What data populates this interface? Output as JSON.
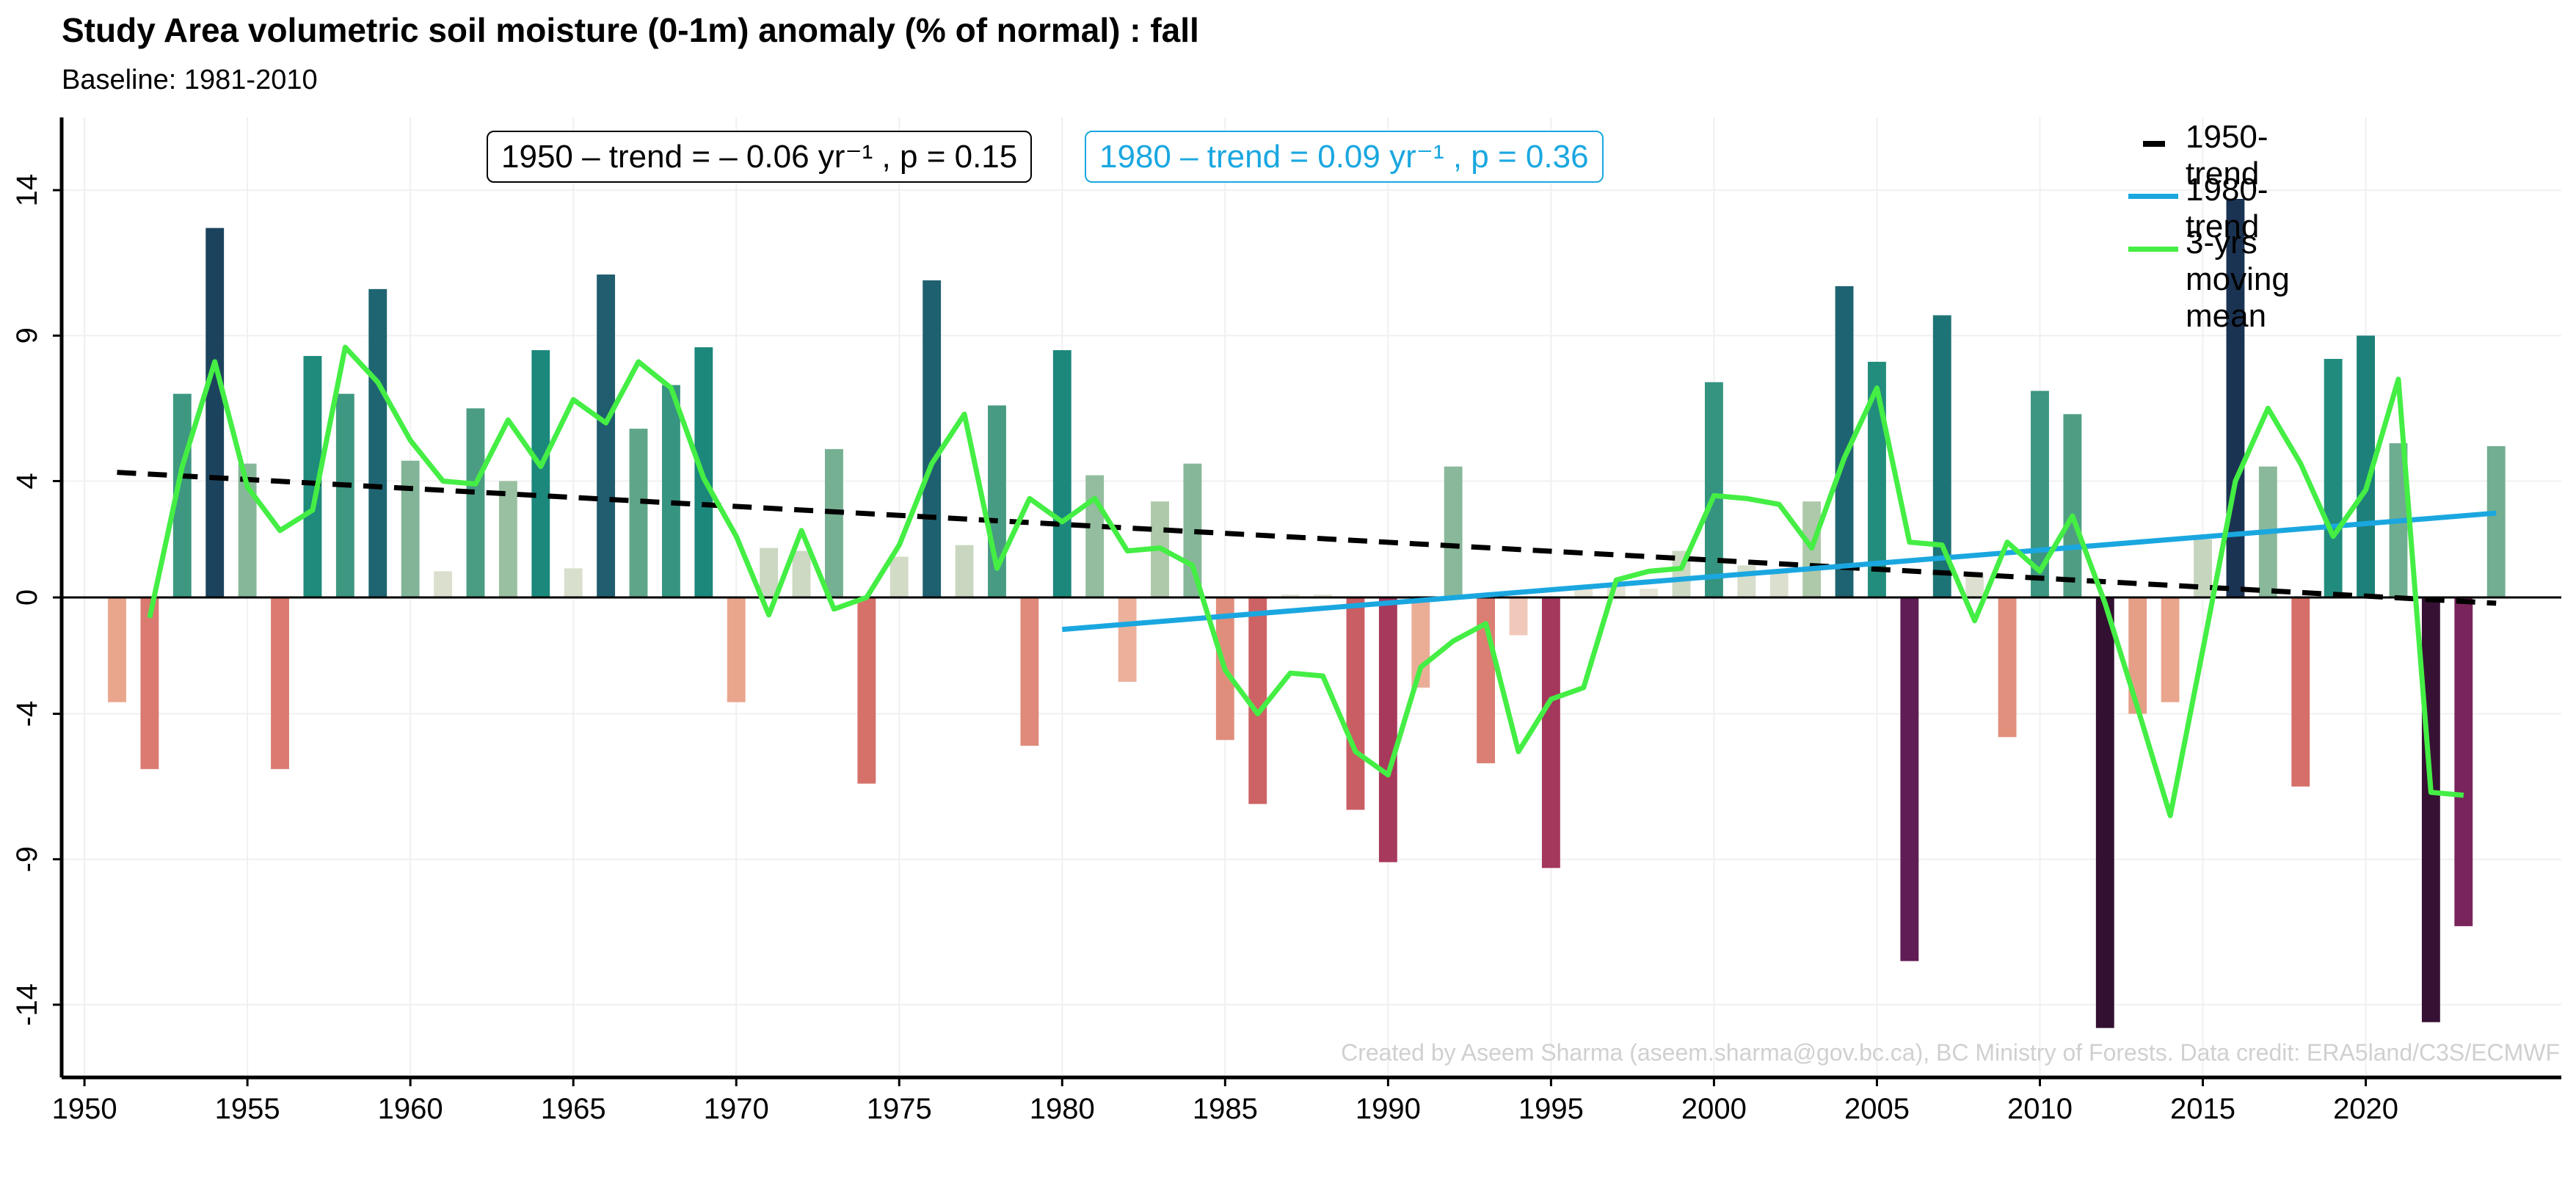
{
  "title": "Study Area volumetric soil moisture (0-1m) anomaly (% of normal) : fall",
  "subtitle": "Baseline: 1981-2010",
  "annotation_1950": "1950 –  trend = – 0.06 yr⁻¹ , p = 0.15",
  "annotation_1980": "1980 –  trend = 0.09 yr⁻¹ , p = 0.36",
  "legend": [
    {
      "label": "1950-trend",
      "color": "#000000",
      "style": "dashed"
    },
    {
      "label": "1980-trend",
      "color": "#1aa7e0",
      "style": "solid"
    },
    {
      "label": "3-yrs moving mean",
      "color": "#44ee44",
      "style": "solid"
    }
  ],
  "credit": "Created by Aseem Sharma (aseem.sharma@gov.bc.ca), BC Ministry of Forests. Data credit: ERA5land/C3S/ECMWF",
  "chart_data": {
    "type": "bar",
    "x": [
      1951,
      1952,
      1953,
      1954,
      1955,
      1956,
      1957,
      1958,
      1959,
      1960,
      1961,
      1962,
      1963,
      1964,
      1965,
      1966,
      1967,
      1968,
      1969,
      1970,
      1971,
      1972,
      1973,
      1974,
      1975,
      1976,
      1977,
      1978,
      1979,
      1980,
      1981,
      1982,
      1983,
      1984,
      1985,
      1986,
      1987,
      1988,
      1989,
      1990,
      1991,
      1992,
      1993,
      1994,
      1995,
      1996,
      1997,
      1998,
      1999,
      2000,
      2001,
      2002,
      2003,
      2004,
      2005,
      2006,
      2007,
      2008,
      2009,
      2010,
      2011,
      2012,
      2013,
      2014,
      2015,
      2016,
      2017,
      2018,
      2019,
      2020,
      2021,
      2022,
      2023,
      2024
    ],
    "values": [
      -3.6,
      -5.9,
      7.0,
      12.7,
      4.6,
      -5.9,
      8.3,
      7.0,
      10.6,
      4.7,
      0.9,
      6.5,
      4.0,
      8.5,
      1.0,
      11.1,
      5.8,
      7.3,
      8.6,
      -3.6,
      1.7,
      1.6,
      5.1,
      -6.4,
      1.4,
      10.9,
      1.8,
      6.6,
      -5.1,
      8.5,
      4.2,
      -2.9,
      3.3,
      4.6,
      -4.9,
      -7.1,
      0.1,
      0.1,
      -7.3,
      -9.1,
      -3.1,
      4.5,
      -5.7,
      -1.3,
      -9.3,
      0.3,
      0.4,
      0.3,
      1.6,
      7.4,
      1.1,
      0.9,
      3.3,
      10.7,
      8.1,
      -12.5,
      9.7,
      0.8,
      -4.8,
      7.1,
      6.3,
      -14.8,
      -4.0,
      -3.6,
      2.0,
      13.7,
      4.5,
      -6.5,
      8.2,
      9.0,
      5.3,
      -14.6,
      -11.3,
      5.2
    ],
    "moving_mean_label": "3-yrs moving mean",
    "moving_mean_x": [
      1952,
      1953,
      1954,
      1955,
      1956,
      1957,
      1958,
      1959,
      1960,
      1961,
      1962,
      1963,
      1964,
      1965,
      1966,
      1967,
      1968,
      1969,
      1970,
      1971,
      1972,
      1973,
      1974,
      1975,
      1976,
      1977,
      1978,
      1979,
      1980,
      1981,
      1982,
      1983,
      1984,
      1985,
      1986,
      1987,
      1988,
      1989,
      1990,
      1991,
      1992,
      1993,
      1994,
      1995,
      1996,
      1997,
      1998,
      1999,
      2000,
      2001,
      2002,
      2003,
      2004,
      2005,
      2006,
      2007,
      2008,
      2009,
      2010,
      2011,
      2012,
      2013,
      2014,
      2015,
      2016,
      2017,
      2018,
      2019,
      2020,
      2021,
      2022,
      2023
    ],
    "moving_mean": [
      -0.7,
      4.5,
      8.1,
      3.8,
      2.3,
      3.0,
      8.6,
      7.4,
      5.4,
      4.0,
      3.9,
      6.1,
      4.5,
      6.8,
      6.0,
      8.1,
      7.2,
      4.1,
      2.1,
      -0.6,
      2.3,
      -0.4,
      0.0,
      1.8,
      4.6,
      6.3,
      1.0,
      3.4,
      2.6,
      3.4,
      1.6,
      1.7,
      1.1,
      -2.5,
      -4.0,
      -2.6,
      -2.7,
      -5.3,
      -6.1,
      -2.4,
      -1.5,
      -0.9,
      -5.3,
      -3.5,
      -3.1,
      0.6,
      0.9,
      1.0,
      3.5,
      3.4,
      3.2,
      1.7,
      4.8,
      7.2,
      1.9,
      1.8,
      -0.8,
      1.9,
      0.9,
      2.8,
      -0.2,
      -3.8,
      -7.5,
      -1.8,
      4.0,
      6.5,
      4.6,
      2.1,
      3.7,
      7.5,
      -6.7,
      -6.8
    ],
    "trend_1950": {
      "label": "1950-trend",
      "x": [
        1951,
        2024
      ],
      "y": [
        4.3,
        -0.2
      ]
    },
    "trend_1980": {
      "label": "1980-trend",
      "x": [
        1980,
        2024
      ],
      "y": [
        -1.1,
        2.9
      ]
    },
    "xlim": [
      1949.3,
      2026
    ],
    "ylim": [
      -16.5,
      16.5
    ],
    "x_ticks": [
      1950,
      1955,
      1960,
      1965,
      1970,
      1975,
      1980,
      1985,
      1990,
      1995,
      2000,
      2005,
      2010,
      2015,
      2020
    ],
    "y_ticks": [
      -14,
      -9,
      -4,
      0,
      4,
      9,
      14
    ],
    "y_tick_labels": [
      "-14",
      "-9",
      "-4",
      "0",
      "4",
      "9",
      "14"
    ],
    "grid": true,
    "legend_position": "top-right"
  }
}
